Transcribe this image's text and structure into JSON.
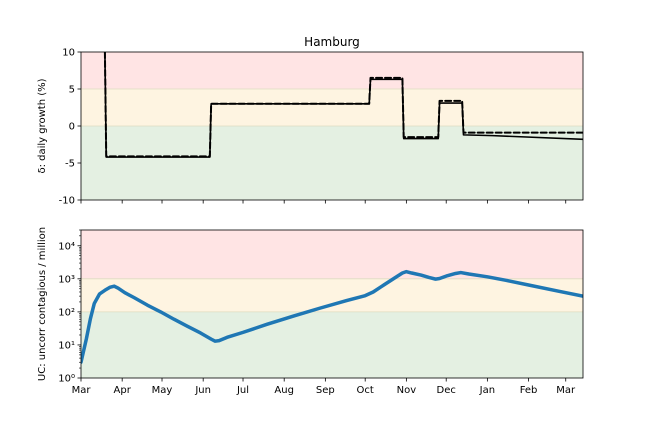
{
  "chart_data": [
    {
      "type": "line",
      "title": "Hamburg",
      "xlabel": "",
      "ylabel": "δ: daily growth (%)",
      "ylim": [
        -10,
        10
      ],
      "yticks": [
        10,
        5,
        0,
        -5,
        -10
      ],
      "xlim": [
        0,
        378
      ],
      "x_ticks": [
        {
          "label": "Mar",
          "x": 0
        },
        {
          "label": "Apr",
          "x": 31
        },
        {
          "label": "May",
          "x": 61
        },
        {
          "label": "Jun",
          "x": 92
        },
        {
          "label": "Jul",
          "x": 122
        },
        {
          "label": "Aug",
          "x": 153
        },
        {
          "label": "Sep",
          "x": 184
        },
        {
          "label": "Oct",
          "x": 214
        },
        {
          "label": "Nov",
          "x": 245
        },
        {
          "label": "Dec",
          "x": 275
        },
        {
          "label": "Jan",
          "x": 306
        },
        {
          "label": "Feb",
          "x": 337
        },
        {
          "label": "Mar",
          "x": 365
        }
      ],
      "bands": [
        {
          "from": 5,
          "to": 10,
          "color": "#ffe4e4"
        },
        {
          "from": 0,
          "to": 5,
          "color": "#fef4e1"
        },
        {
          "from": -10,
          "to": 0,
          "color": "#e4f0e2"
        }
      ],
      "series": [
        {
          "style": "solid",
          "color": "#000000",
          "points": [
            [
              18,
              10
            ],
            [
              19,
              -4.2
            ],
            [
              97,
              -4.2
            ],
            [
              98,
              3.0
            ],
            [
              217,
              3.0
            ],
            [
              218,
              6.3
            ],
            [
              242,
              6.3
            ],
            [
              243,
              -1.7
            ],
            [
              269,
              -1.7
            ],
            [
              270,
              3.1
            ],
            [
              287,
              3.1
            ],
            [
              288,
              -1.2
            ],
            [
              310,
              -1.3
            ],
            [
              378,
              -1.8
            ]
          ]
        },
        {
          "style": "dashed",
          "color": "#000000",
          "points": [
            [
              18,
              10
            ],
            [
              19,
              -4.1
            ],
            [
              97,
              -4.1
            ],
            [
              98,
              3.0
            ],
            [
              217,
              3.0
            ],
            [
              218,
              6.5
            ],
            [
              242,
              6.5
            ],
            [
              243,
              -1.5
            ],
            [
              269,
              -1.5
            ],
            [
              270,
              3.4
            ],
            [
              287,
              3.4
            ],
            [
              288,
              -0.9
            ],
            [
              378,
              -0.9
            ]
          ]
        }
      ],
      "grid": false
    },
    {
      "type": "line",
      "xlabel": "",
      "ylabel": "UC: uncorr contagious / million",
      "yscale": "log",
      "ylim": [
        1,
        30000
      ],
      "yticks": [
        1,
        10,
        100,
        1000,
        10000
      ],
      "ytick_labels": [
        "10⁰",
        "10¹",
        "10²",
        "10³",
        "10⁴"
      ],
      "xlim": [
        0,
        378
      ],
      "x_ticks": [
        {
          "label": "Mar",
          "x": 0
        },
        {
          "label": "Apr",
          "x": 31
        },
        {
          "label": "May",
          "x": 61
        },
        {
          "label": "Jun",
          "x": 92
        },
        {
          "label": "Jul",
          "x": 122
        },
        {
          "label": "Aug",
          "x": 153
        },
        {
          "label": "Sep",
          "x": 184
        },
        {
          "label": "Oct",
          "x": 214
        },
        {
          "label": "Nov",
          "x": 245
        },
        {
          "label": "Dec",
          "x": 275
        },
        {
          "label": "Jan",
          "x": 306
        },
        {
          "label": "Feb",
          "x": 337
        },
        {
          "label": "Mar",
          "x": 365
        }
      ],
      "bands": [
        {
          "from": 1000,
          "to": 30000,
          "color": "#ffe4e4"
        },
        {
          "from": 100,
          "to": 1000,
          "color": "#fef4e1"
        },
        {
          "from": 1,
          "to": 100,
          "color": "#e4f0e2"
        }
      ],
      "series": [
        {
          "style": "solid",
          "color": "#1f77b4",
          "points": [
            [
              0,
              3
            ],
            [
              4,
              15
            ],
            [
              7,
              60
            ],
            [
              10,
              180
            ],
            [
              14,
              350
            ],
            [
              18,
              450
            ],
            [
              22,
              560
            ],
            [
              25,
              600
            ],
            [
              28,
              520
            ],
            [
              33,
              380
            ],
            [
              40,
              270
            ],
            [
              50,
              160
            ],
            [
              60,
              100
            ],
            [
              70,
              60
            ],
            [
              80,
              37
            ],
            [
              90,
              23
            ],
            [
              98,
              15
            ],
            [
              101,
              13
            ],
            [
              104,
              13.5
            ],
            [
              110,
              17
            ],
            [
              122,
              24
            ],
            [
              140,
              42
            ],
            [
              160,
              75
            ],
            [
              180,
              130
            ],
            [
              200,
              220
            ],
            [
              214,
              310
            ],
            [
              220,
              400
            ],
            [
              228,
              650
            ],
            [
              236,
              1050
            ],
            [
              242,
              1500
            ],
            [
              245,
              1650
            ],
            [
              249,
              1500
            ],
            [
              256,
              1300
            ],
            [
              262,
              1100
            ],
            [
              267,
              980
            ],
            [
              270,
              1020
            ],
            [
              276,
              1250
            ],
            [
              282,
              1450
            ],
            [
              286,
              1550
            ],
            [
              292,
              1400
            ],
            [
              306,
              1150
            ],
            [
              320,
              900
            ],
            [
              337,
              650
            ],
            [
              360,
              420
            ],
            [
              378,
              300
            ]
          ]
        }
      ],
      "grid": false
    }
  ]
}
